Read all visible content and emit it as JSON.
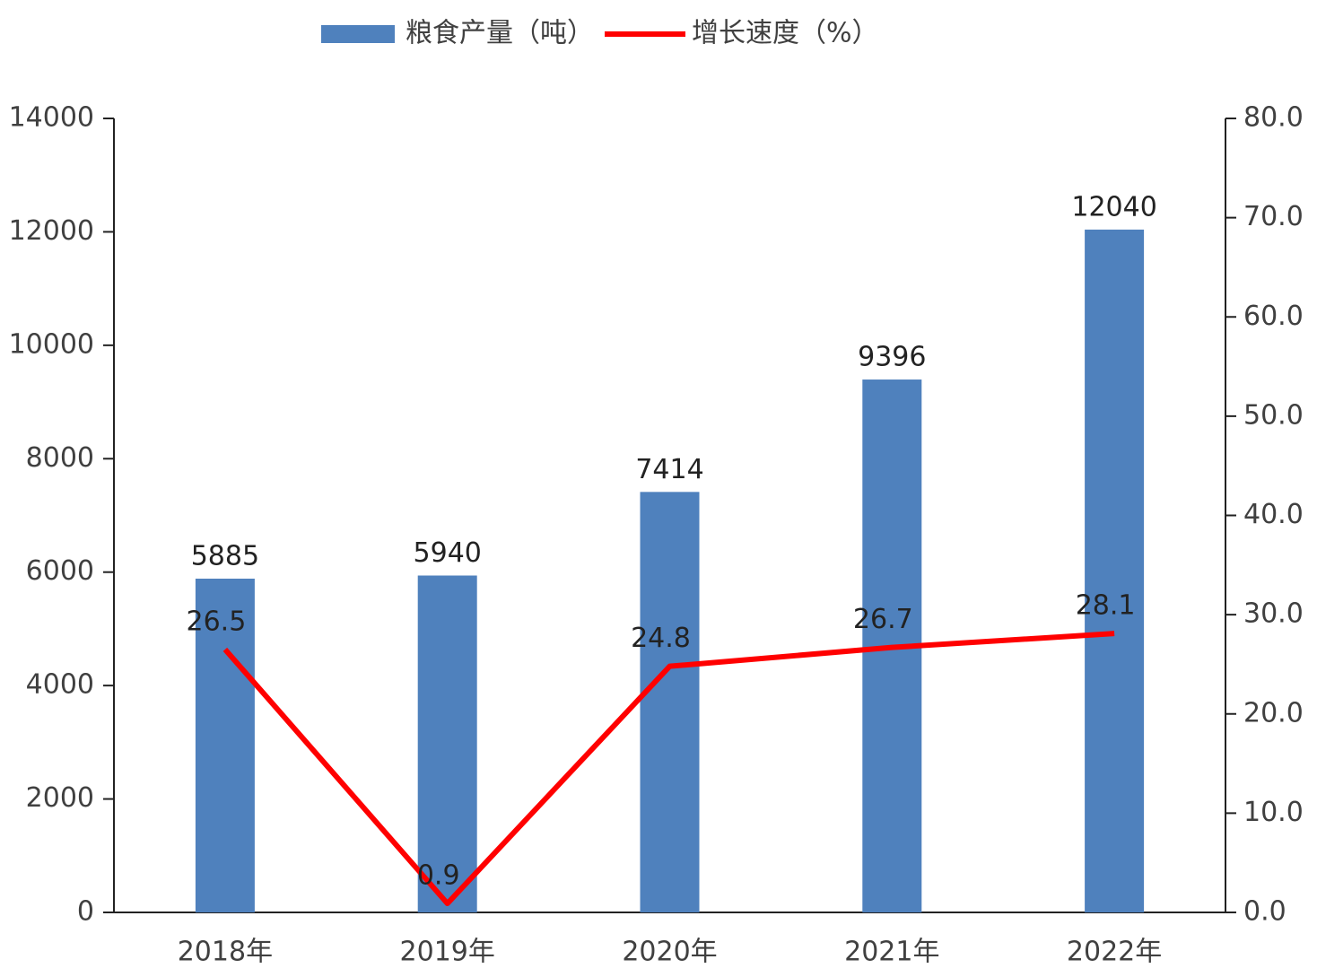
{
  "chart_data": {
    "type": "bar",
    "categories": [
      "2018年",
      "2019年",
      "2020年",
      "2021年",
      "2022年"
    ],
    "series": [
      {
        "name": "粮食产量（吨）",
        "color": "#4f81bd",
        "values": [
          5885,
          5940,
          7414,
          9396,
          12040
        ]
      },
      {
        "name": "增长速度（%）",
        "color": "#ff0000",
        "type": "line",
        "axis": "y2",
        "values": [
          26.5,
          0.9,
          24.8,
          26.7,
          28.1
        ]
      }
    ],
    "ylim": [
      0,
      14000
    ],
    "yticks": [
      0,
      2000,
      4000,
      6000,
      8000,
      10000,
      12000,
      14000
    ],
    "y2lim": [
      0,
      80
    ],
    "y2ticks": [
      {
        "value": 0,
        "label": "0.0"
      },
      {
        "value": 10,
        "label": "10.0"
      },
      {
        "value": 20,
        "label": "20.0"
      },
      {
        "value": 30,
        "label": "30.0"
      },
      {
        "value": 40,
        "label": "40.0"
      },
      {
        "value": 50,
        "label": "50.0"
      },
      {
        "value": 60,
        "label": "60.0"
      },
      {
        "value": 70,
        "label": "70.0"
      },
      {
        "value": 80,
        "label": "80.0"
      }
    ],
    "legend": "top"
  }
}
